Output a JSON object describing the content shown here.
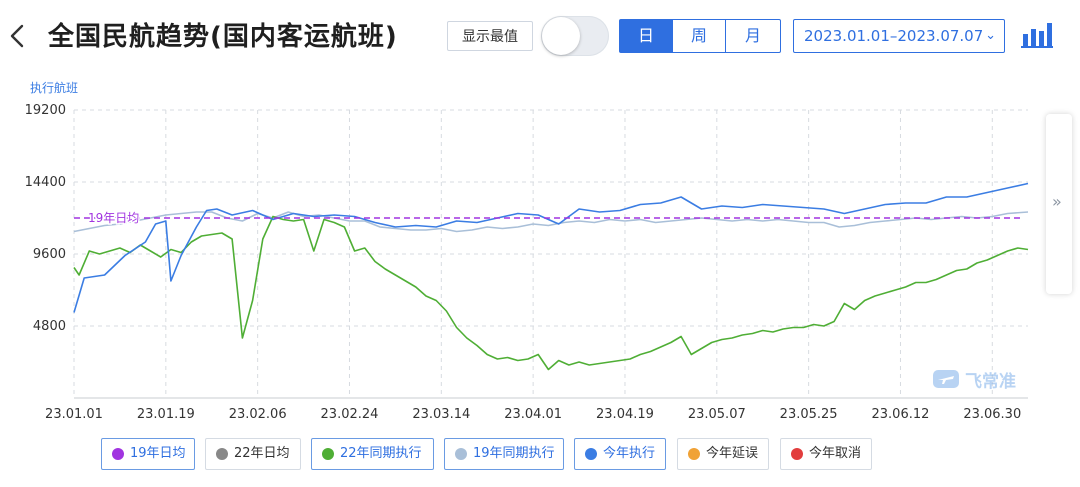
{
  "header": {
    "title": "全国民航趋势(国内客运航班)",
    "toggle_label": "显示最值",
    "toggle_on": false,
    "periods": [
      "日",
      "周",
      "月"
    ],
    "active_period": "日",
    "date_range": "2023.01.01–2023.07.07"
  },
  "watermark": "飞常准",
  "colors": {
    "accent": "#2f6fe0",
    "avg19": "#a134e0",
    "g22": "#888888",
    "y22": "#4fae35",
    "y19": "#a9bfd8",
    "today": "#3b7de3",
    "delay": "#f0a236",
    "cancel": "#e23d3d"
  },
  "chart_data": {
    "type": "line",
    "ylabel": "执行航班",
    "ylim": [
      0,
      19200
    ],
    "yticks": [
      4800,
      9600,
      14400,
      19200
    ],
    "xlim": [
      "2023-01-01",
      "2023-07-07"
    ],
    "xticks": [
      "23.01.01",
      "23.01.19",
      "23.02.06",
      "23.02.24",
      "23.03.14",
      "23.04.01",
      "23.04.19",
      "23.05.07",
      "23.05.25",
      "23.06.12",
      "23.06.30"
    ],
    "reference_line": {
      "name": "19年日均",
      "value": 12000
    },
    "grid": true,
    "legend_position": "bottom",
    "series": [
      {
        "name": "今年执行",
        "points": [
          [
            "2023-01-01",
            5700
          ],
          [
            "2023-01-03",
            8000
          ],
          [
            "2023-01-07",
            8200
          ],
          [
            "2023-01-11",
            9500
          ],
          [
            "2023-01-15",
            10400
          ],
          [
            "2023-01-17",
            11600
          ],
          [
            "2023-01-19",
            11800
          ],
          [
            "2023-01-20",
            7800
          ],
          [
            "2023-01-22",
            9500
          ],
          [
            "2023-01-25",
            11400
          ],
          [
            "2023-01-27",
            12500
          ],
          [
            "2023-01-29",
            12600
          ],
          [
            "2023-02-01",
            12200
          ],
          [
            "2023-02-05",
            12500
          ],
          [
            "2023-02-09",
            11900
          ],
          [
            "2023-02-13",
            12300
          ],
          [
            "2023-02-17",
            12100
          ],
          [
            "2023-02-21",
            12200
          ],
          [
            "2023-02-25",
            12100
          ],
          [
            "2023-03-01",
            11700
          ],
          [
            "2023-03-05",
            11400
          ],
          [
            "2023-03-09",
            11500
          ],
          [
            "2023-03-13",
            11400
          ],
          [
            "2023-03-17",
            11800
          ],
          [
            "2023-03-21",
            11700
          ],
          [
            "2023-03-25",
            12000
          ],
          [
            "2023-03-29",
            12300
          ],
          [
            "2023-04-02",
            12200
          ],
          [
            "2023-04-06",
            11600
          ],
          [
            "2023-04-10",
            12600
          ],
          [
            "2023-04-14",
            12400
          ],
          [
            "2023-04-18",
            12500
          ],
          [
            "2023-04-22",
            12900
          ],
          [
            "2023-04-26",
            13000
          ],
          [
            "2023-04-30",
            13400
          ],
          [
            "2023-05-04",
            12600
          ],
          [
            "2023-05-08",
            12800
          ],
          [
            "2023-05-12",
            12700
          ],
          [
            "2023-05-16",
            12900
          ],
          [
            "2023-05-20",
            12800
          ],
          [
            "2023-05-24",
            12700
          ],
          [
            "2023-05-28",
            12600
          ],
          [
            "2023-06-01",
            12300
          ],
          [
            "2023-06-05",
            12600
          ],
          [
            "2023-06-09",
            12900
          ],
          [
            "2023-06-13",
            13000
          ],
          [
            "2023-06-17",
            13000
          ],
          [
            "2023-06-21",
            13400
          ],
          [
            "2023-06-25",
            13400
          ],
          [
            "2023-06-29",
            13700
          ],
          [
            "2023-07-03",
            14000
          ],
          [
            "2023-07-07",
            14300
          ]
        ]
      },
      {
        "name": "22年同期执行",
        "points": [
          [
            "2023-01-01",
            8700
          ],
          [
            "2023-01-02",
            8200
          ],
          [
            "2023-01-04",
            9800
          ],
          [
            "2023-01-06",
            9600
          ],
          [
            "2023-01-08",
            9800
          ],
          [
            "2023-01-10",
            10000
          ],
          [
            "2023-01-12",
            9700
          ],
          [
            "2023-01-14",
            10200
          ],
          [
            "2023-01-16",
            9800
          ],
          [
            "2023-01-18",
            9400
          ],
          [
            "2023-01-20",
            9900
          ],
          [
            "2023-01-22",
            9700
          ],
          [
            "2023-01-24",
            10400
          ],
          [
            "2023-01-26",
            10800
          ],
          [
            "2023-01-28",
            10900
          ],
          [
            "2023-01-30",
            11000
          ],
          [
            "2023-02-01",
            10600
          ],
          [
            "2023-02-03",
            4000
          ],
          [
            "2023-02-05",
            6500
          ],
          [
            "2023-02-07",
            10600
          ],
          [
            "2023-02-09",
            12100
          ],
          [
            "2023-02-11",
            11900
          ],
          [
            "2023-02-13",
            11800
          ],
          [
            "2023-02-15",
            11900
          ],
          [
            "2023-02-17",
            9800
          ],
          [
            "2023-02-19",
            11900
          ],
          [
            "2023-02-21",
            11700
          ],
          [
            "2023-02-23",
            11400
          ],
          [
            "2023-02-25",
            9800
          ],
          [
            "2023-02-27",
            10000
          ],
          [
            "2023-03-01",
            9100
          ],
          [
            "2023-03-03",
            8600
          ],
          [
            "2023-03-05",
            8200
          ],
          [
            "2023-03-07",
            7800
          ],
          [
            "2023-03-09",
            7400
          ],
          [
            "2023-03-11",
            6800
          ],
          [
            "2023-03-13",
            6500
          ],
          [
            "2023-03-15",
            5800
          ],
          [
            "2023-03-17",
            4700
          ],
          [
            "2023-03-19",
            4000
          ],
          [
            "2023-03-21",
            3500
          ],
          [
            "2023-03-23",
            2900
          ],
          [
            "2023-03-25",
            2600
          ],
          [
            "2023-03-27",
            2700
          ],
          [
            "2023-03-29",
            2500
          ],
          [
            "2023-03-31",
            2600
          ],
          [
            "2023-04-02",
            2900
          ],
          [
            "2023-04-04",
            1900
          ],
          [
            "2023-04-06",
            2500
          ],
          [
            "2023-04-08",
            2200
          ],
          [
            "2023-04-10",
            2400
          ],
          [
            "2023-04-12",
            2200
          ],
          [
            "2023-04-14",
            2300
          ],
          [
            "2023-04-16",
            2400
          ],
          [
            "2023-04-18",
            2500
          ],
          [
            "2023-04-20",
            2600
          ],
          [
            "2023-04-22",
            2900
          ],
          [
            "2023-04-24",
            3100
          ],
          [
            "2023-04-26",
            3400
          ],
          [
            "2023-04-28",
            3700
          ],
          [
            "2023-04-30",
            4100
          ],
          [
            "2023-05-02",
            2900
          ],
          [
            "2023-05-04",
            3300
          ],
          [
            "2023-05-06",
            3700
          ],
          [
            "2023-05-08",
            3900
          ],
          [
            "2023-05-10",
            4000
          ],
          [
            "2023-05-12",
            4200
          ],
          [
            "2023-05-14",
            4300
          ],
          [
            "2023-05-16",
            4500
          ],
          [
            "2023-05-18",
            4400
          ],
          [
            "2023-05-20",
            4600
          ],
          [
            "2023-05-22",
            4700
          ],
          [
            "2023-05-24",
            4700
          ],
          [
            "2023-05-26",
            4900
          ],
          [
            "2023-05-28",
            4800
          ],
          [
            "2023-05-30",
            5100
          ],
          [
            "2023-06-01",
            6300
          ],
          [
            "2023-06-03",
            5900
          ],
          [
            "2023-06-05",
            6500
          ],
          [
            "2023-06-07",
            6800
          ],
          [
            "2023-06-09",
            7000
          ],
          [
            "2023-06-11",
            7200
          ],
          [
            "2023-06-13",
            7400
          ],
          [
            "2023-06-15",
            7700
          ],
          [
            "2023-06-17",
            7700
          ],
          [
            "2023-06-19",
            7900
          ],
          [
            "2023-06-21",
            8200
          ],
          [
            "2023-06-23",
            8500
          ],
          [
            "2023-06-25",
            8600
          ],
          [
            "2023-06-27",
            9000
          ],
          [
            "2023-06-29",
            9200
          ],
          [
            "2023-07-01",
            9500
          ],
          [
            "2023-07-03",
            9800
          ],
          [
            "2023-07-05",
            10000
          ],
          [
            "2023-07-07",
            9900
          ]
        ]
      },
      {
        "name": "19年同期执行",
        "points": [
          [
            "2023-01-01",
            11100
          ],
          [
            "2023-01-04",
            11300
          ],
          [
            "2023-01-07",
            11500
          ],
          [
            "2023-01-10",
            11600
          ],
          [
            "2023-01-13",
            11800
          ],
          [
            "2023-01-16",
            12000
          ],
          [
            "2023-01-19",
            12200
          ],
          [
            "2023-01-22",
            12300
          ],
          [
            "2023-01-25",
            12400
          ],
          [
            "2023-01-28",
            12400
          ],
          [
            "2023-01-31",
            12000
          ],
          [
            "2023-02-03",
            11800
          ],
          [
            "2023-02-06",
            12300
          ],
          [
            "2023-02-09",
            12000
          ],
          [
            "2023-02-12",
            12400
          ],
          [
            "2023-02-15",
            12100
          ],
          [
            "2023-02-18",
            12200
          ],
          [
            "2023-02-21",
            12000
          ],
          [
            "2023-02-24",
            11800
          ],
          [
            "2023-02-27",
            11800
          ],
          [
            "2023-03-02",
            11400
          ],
          [
            "2023-03-05",
            11300
          ],
          [
            "2023-03-08",
            11200
          ],
          [
            "2023-03-11",
            11200
          ],
          [
            "2023-03-14",
            11300
          ],
          [
            "2023-03-17",
            11100
          ],
          [
            "2023-03-20",
            11200
          ],
          [
            "2023-03-23",
            11400
          ],
          [
            "2023-03-26",
            11300
          ],
          [
            "2023-03-29",
            11400
          ],
          [
            "2023-04-01",
            11600
          ],
          [
            "2023-04-04",
            11500
          ],
          [
            "2023-04-07",
            11700
          ],
          [
            "2023-04-10",
            11800
          ],
          [
            "2023-04-13",
            11700
          ],
          [
            "2023-04-16",
            11900
          ],
          [
            "2023-04-19",
            11800
          ],
          [
            "2023-04-22",
            11900
          ],
          [
            "2023-04-25",
            11700
          ],
          [
            "2023-04-28",
            11800
          ],
          [
            "2023-05-01",
            11900
          ],
          [
            "2023-05-04",
            12000
          ],
          [
            "2023-05-07",
            11900
          ],
          [
            "2023-05-10",
            11800
          ],
          [
            "2023-05-13",
            11900
          ],
          [
            "2023-05-16",
            11800
          ],
          [
            "2023-05-19",
            11900
          ],
          [
            "2023-05-22",
            11800
          ],
          [
            "2023-05-25",
            11700
          ],
          [
            "2023-05-28",
            11700
          ],
          [
            "2023-05-31",
            11400
          ],
          [
            "2023-06-03",
            11500
          ],
          [
            "2023-06-06",
            11700
          ],
          [
            "2023-06-09",
            11800
          ],
          [
            "2023-06-12",
            11900
          ],
          [
            "2023-06-15",
            12000
          ],
          [
            "2023-06-18",
            11900
          ],
          [
            "2023-06-21",
            12000
          ],
          [
            "2023-06-24",
            12100
          ],
          [
            "2023-06-27",
            12000
          ],
          [
            "2023-06-30",
            12100
          ],
          [
            "2023-07-03",
            12300
          ],
          [
            "2023-07-07",
            12400
          ]
        ]
      }
    ]
  },
  "legend": [
    {
      "label": "19年日均",
      "color": "#a134e0",
      "on": true
    },
    {
      "label": "22年日均",
      "color": "#888888",
      "on": false
    },
    {
      "label": "22年同期执行",
      "color": "#4fae35",
      "on": true
    },
    {
      "label": "19年同期执行",
      "color": "#a9bfd8",
      "on": true
    },
    {
      "label": "今年执行",
      "color": "#3b7de3",
      "on": true
    },
    {
      "label": "今年延误",
      "color": "#f0a236",
      "on": false
    },
    {
      "label": "今年取消",
      "color": "#e23d3d",
      "on": false
    }
  ]
}
